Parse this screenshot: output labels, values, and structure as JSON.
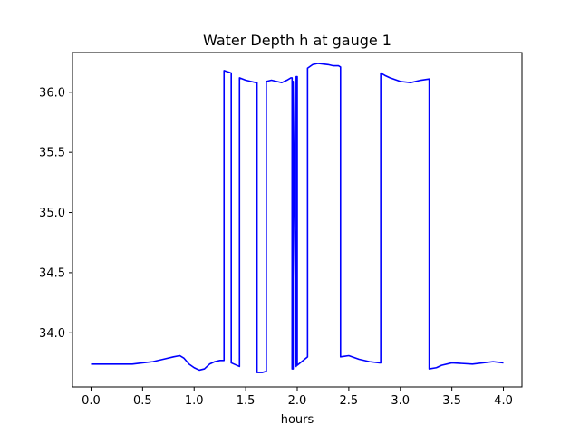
{
  "chart_data": {
    "type": "line",
    "title": "Water Depth h at gauge 1",
    "xlabel": "hours",
    "ylabel": "",
    "xlim": [
      -0.18,
      4.18
    ],
    "ylim": [
      33.55,
      36.33
    ],
    "grid": false,
    "legend": "none",
    "x_ticks": [
      0.0,
      0.5,
      1.0,
      1.5,
      2.0,
      2.5,
      3.0,
      3.5,
      4.0
    ],
    "x_tick_labels": [
      "0.0",
      "0.5",
      "1.0",
      "1.5",
      "2.0",
      "2.5",
      "3.0",
      "3.5",
      "4.0"
    ],
    "y_ticks": [
      34.0,
      34.5,
      35.0,
      35.5,
      36.0
    ],
    "y_tick_labels": [
      "34.0",
      "34.5",
      "35.0",
      "35.5",
      "36.0"
    ],
    "series": [
      {
        "color": "#0000ff",
        "x": [
          0.0,
          0.2,
          0.4,
          0.5,
          0.6,
          0.7,
          0.8,
          0.86,
          0.9,
          0.95,
          1.0,
          1.05,
          1.1,
          1.15,
          1.2,
          1.25,
          1.29,
          1.29,
          1.36,
          1.36,
          1.44,
          1.44,
          1.5,
          1.55,
          1.6,
          1.61,
          1.61,
          1.66,
          1.7,
          1.7,
          1.75,
          1.8,
          1.85,
          1.9,
          1.94,
          1.95,
          1.95,
          1.96,
          1.96,
          1.99,
          1.99,
          2.0,
          2.0,
          2.1,
          2.1,
          2.15,
          2.2,
          2.3,
          2.35,
          2.4,
          2.42,
          2.42,
          2.5,
          2.6,
          2.7,
          2.8,
          2.81,
          2.81,
          2.85,
          2.9,
          3.0,
          3.1,
          3.2,
          3.28,
          3.28,
          3.35,
          3.4,
          3.5,
          3.7,
          3.9,
          4.0
        ],
        "y": [
          33.74,
          33.74,
          33.74,
          33.75,
          33.76,
          33.78,
          33.8,
          33.81,
          33.79,
          33.74,
          33.71,
          33.69,
          33.7,
          33.74,
          33.76,
          33.77,
          33.77,
          36.18,
          36.16,
          33.75,
          33.72,
          36.12,
          36.1,
          36.09,
          36.08,
          36.08,
          33.67,
          33.67,
          33.68,
          36.09,
          36.1,
          36.09,
          36.08,
          36.1,
          36.12,
          36.12,
          33.7,
          33.7,
          36.09,
          33.72,
          36.13,
          36.13,
          33.73,
          33.8,
          36.2,
          36.23,
          36.24,
          36.23,
          36.22,
          36.22,
          36.21,
          33.8,
          33.81,
          33.78,
          33.76,
          33.75,
          33.75,
          36.16,
          36.14,
          36.12,
          36.09,
          36.08,
          36.1,
          36.11,
          33.7,
          33.71,
          33.73,
          33.75,
          33.74,
          33.76,
          33.75
        ]
      }
    ]
  }
}
